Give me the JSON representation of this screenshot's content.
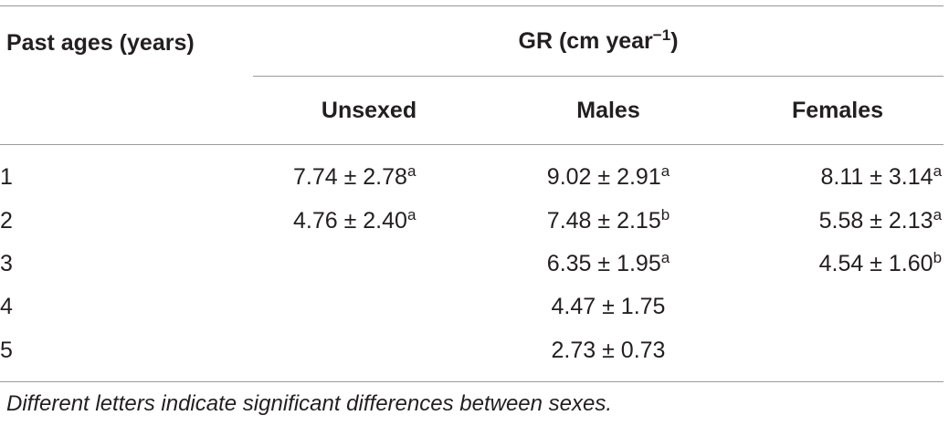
{
  "table": {
    "stub_header": "Past ages (years)",
    "group_header": "GR (cm year",
    "group_header_sup": "−1",
    "group_header_close": ")",
    "columns": [
      "Unsexed",
      "Males",
      "Females"
    ],
    "rows": [
      {
        "age": "1",
        "unsexed": "7.74 ± 2.78",
        "unsexed_sup": "a",
        "males": "9.02 ± 2.91",
        "males_sup": "a",
        "females": "8.11 ± 3.14",
        "females_sup": "a"
      },
      {
        "age": "2",
        "unsexed": "4.76 ± 2.40",
        "unsexed_sup": "a",
        "males": "7.48 ± 2.15",
        "males_sup": "b",
        "females": "5.58 ± 2.13",
        "females_sup": "a"
      },
      {
        "age": "3",
        "unsexed": "",
        "unsexed_sup": "",
        "males": "6.35 ± 1.95",
        "males_sup": "a",
        "females": "4.54 ± 1.60",
        "females_sup": "b"
      },
      {
        "age": "4",
        "unsexed": "",
        "unsexed_sup": "",
        "males": "4.47 ± 1.75",
        "males_sup": "",
        "females": "",
        "females_sup": ""
      },
      {
        "age": "5",
        "unsexed": "",
        "unsexed_sup": "",
        "males": "2.73 ± 0.73",
        "males_sup": "",
        "females": "",
        "females_sup": ""
      }
    ]
  },
  "footnote": "Different letters indicate significant differences between sexes."
}
